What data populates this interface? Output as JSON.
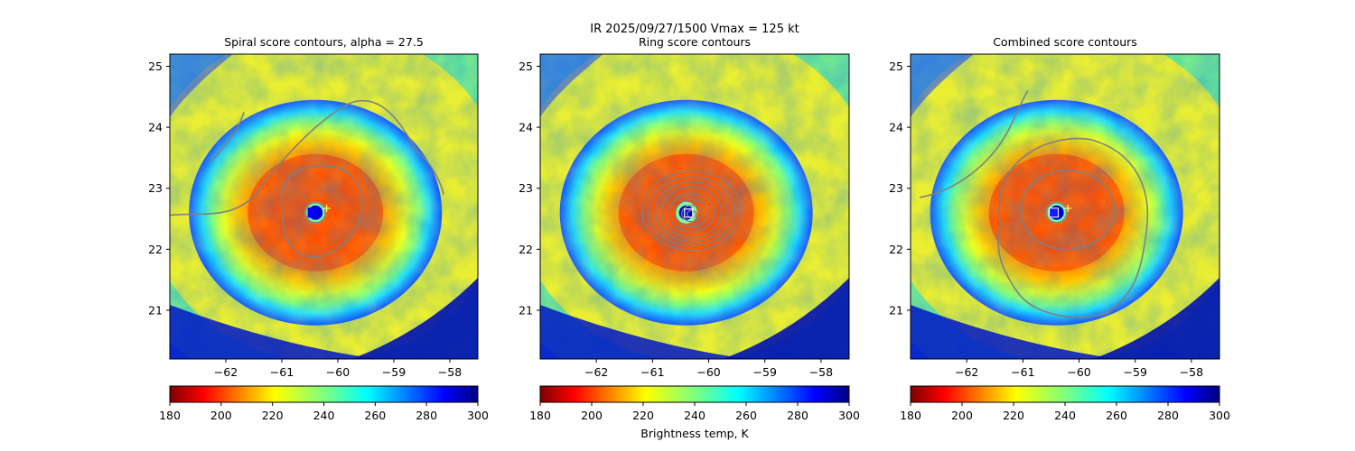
{
  "suptitle": "IR  2025/09/27/1500    Vmax = 125 kt",
  "chart_data": [
    {
      "type": "heatmap",
      "title": "Spiral score contours, alpha = 27.5",
      "field": "IR brightness temperature (K)",
      "xlim": [
        -63.0,
        -57.5
      ],
      "ylim": [
        20.2,
        25.2
      ],
      "xticks": [
        -62,
        -61,
        -60,
        -59,
        -58
      ],
      "yticks": [
        21,
        22,
        23,
        24,
        25
      ],
      "contour_variable": "spiral score",
      "contour_count": 3,
      "best_track_center": {
        "x": -60.2,
        "y": 22.67,
        "marker": "yellow plus"
      },
      "estimated_center": {
        "x": -60.45,
        "y": 22.6,
        "marker": "blue filled square"
      },
      "colorbar": {
        "ticks": [
          180,
          200,
          220,
          240,
          260,
          280,
          300
        ],
        "range": [
          180,
          300
        ],
        "colormap": "jet reversed"
      }
    },
    {
      "type": "heatmap",
      "title": "Ring score contours",
      "field": "IR brightness temperature (K)",
      "xlim": [
        -63.0,
        -57.5
      ],
      "ylim": [
        20.2,
        25.2
      ],
      "xticks": [
        -62,
        -61,
        -60,
        -59,
        -58
      ],
      "yticks": [
        21,
        22,
        23,
        24,
        25
      ],
      "contour_variable": "ring score",
      "contour_count": 8,
      "estimated_center": {
        "x": -60.35,
        "y": 22.6,
        "marker": "white open square"
      },
      "colorbar": {
        "ticks": [
          180,
          200,
          220,
          240,
          260,
          280,
          300
        ],
        "range": [
          180,
          300
        ],
        "colormap": "jet reversed",
        "label": "Brightness temp, K"
      }
    },
    {
      "type": "heatmap",
      "title": "Combined score contours",
      "field": "IR brightness temperature (K)",
      "xlim": [
        -63.0,
        -57.5
      ],
      "ylim": [
        20.2,
        25.2
      ],
      "xticks": [
        -62,
        -61,
        -60,
        -59,
        -58
      ],
      "yticks": [
        21,
        22,
        23,
        24,
        25
      ],
      "contour_variable": "combined score",
      "contour_count": 4,
      "best_track_center": {
        "x": -60.2,
        "y": 22.67,
        "marker": "yellow plus"
      },
      "estimated_center": {
        "x": -60.45,
        "y": 22.6,
        "marker": "blue square with white outline"
      },
      "colorbar": {
        "ticks": [
          180,
          200,
          220,
          240,
          260,
          280,
          300
        ],
        "range": [
          180,
          300
        ],
        "colormap": "jet reversed"
      }
    }
  ]
}
